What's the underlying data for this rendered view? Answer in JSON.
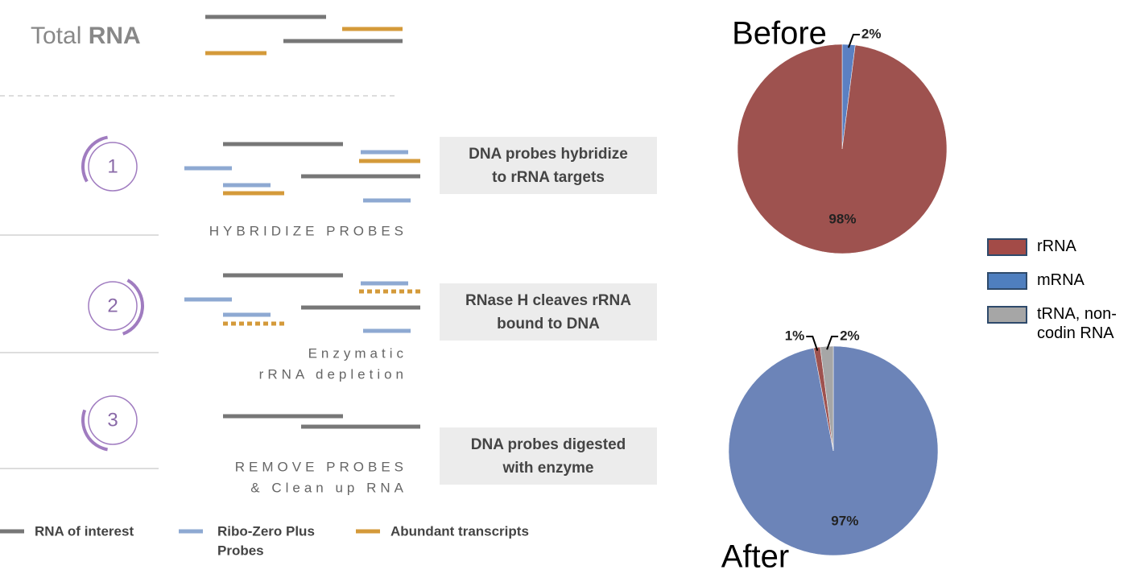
{
  "diagram": {
    "title": {
      "light": "Total",
      "bold": "RNA"
    },
    "steps": [
      {
        "number": "1",
        "caption": [
          "DNA probes hybridize",
          "to rRNA targets"
        ],
        "label": [
          "HYBRIDIZE PROBES"
        ]
      },
      {
        "number": "2",
        "caption": [
          "RNase H cleaves rRNA",
          "bound to DNA"
        ],
        "label": [
          "Enzymatic",
          "rRNA depletion"
        ]
      },
      {
        "number": "3",
        "caption": [
          "DNA probes digested",
          "with enzyme"
        ],
        "label": [
          "REMOVE PROBES",
          "& Clean up RNA"
        ]
      }
    ],
    "legend": [
      [
        "RNA of interest"
      ],
      [
        "Ribo-Zero Plus",
        "Probes"
      ],
      [
        "Abundant transcripts"
      ]
    ]
  },
  "chart_data": [
    {
      "type": "pie",
      "title": "Before",
      "values": [
        2,
        98
      ],
      "value_labels": [
        "2%",
        "98%"
      ],
      "colors": [
        "#5b80c2",
        "#9e524f"
      ]
    },
    {
      "type": "pie",
      "title": "After",
      "values": [
        97,
        1,
        2
      ],
      "value_labels": [
        "97%",
        "1%",
        "2%"
      ],
      "colors": [
        "#6c84b8",
        "#9e524f",
        "#a6a6a6"
      ]
    }
  ],
  "legend": {
    "labels": [
      "rRNA",
      "mRNA",
      "tRNA, non-codin RNA"
    ],
    "colors": [
      "#a34b47",
      "#4f7fbf",
      "#a6a6a6"
    ]
  }
}
